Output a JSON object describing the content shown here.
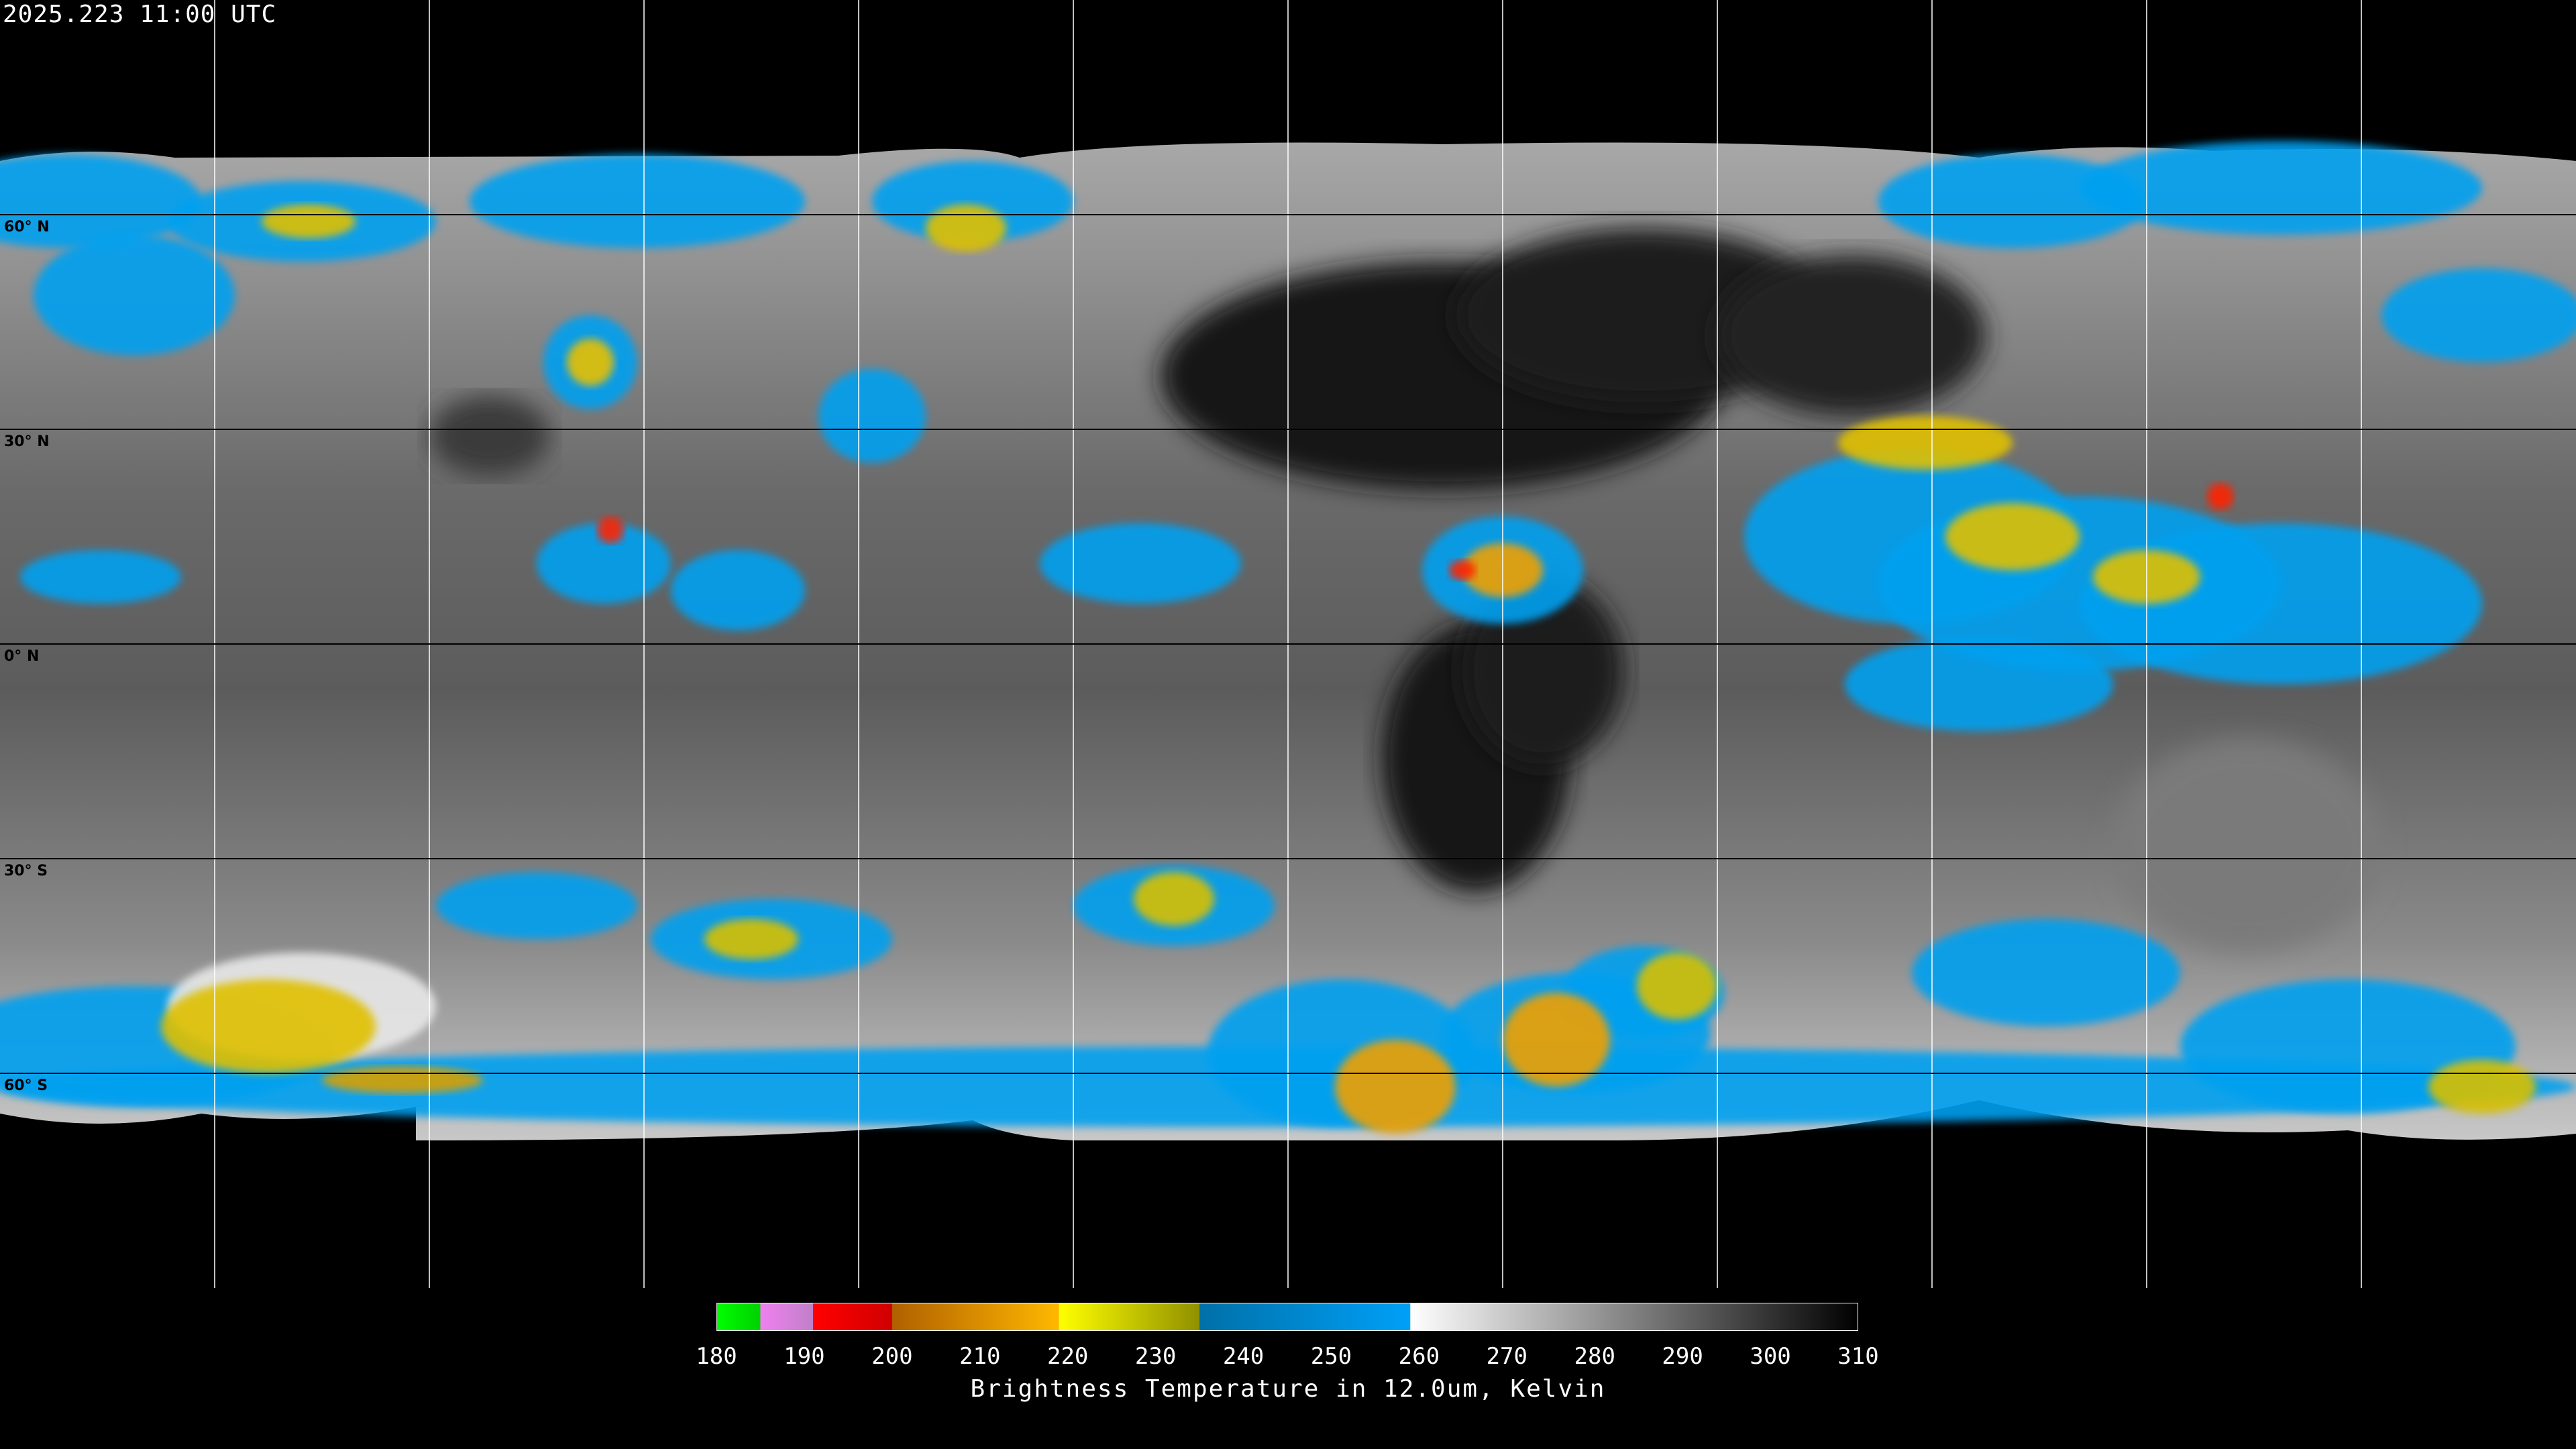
{
  "title": "2025.223 11:00 UTC",
  "grid": {
    "lat_labels": [
      "60° N",
      "30° N",
      "0° N",
      "30° S",
      "60° S"
    ],
    "lat_values": [
      60,
      30,
      0,
      -30,
      -60
    ],
    "lon_spacing_deg": 30
  },
  "colorbar": {
    "label": "Brightness Temperature in 12.0um, Kelvin",
    "range": [
      180,
      310
    ],
    "ticks": [
      "180",
      "190",
      "200",
      "210",
      "220",
      "230",
      "240",
      "250",
      "260",
      "270",
      "280",
      "290",
      "300",
      "310"
    ],
    "segments": [
      {
        "from": 180,
        "to": 185,
        "colors": [
          "#00ff00",
          "#00d000"
        ]
      },
      {
        "from": 185,
        "to": 191,
        "colors": [
          "#f080f0",
          "#c080c8"
        ]
      },
      {
        "from": 191,
        "to": 200,
        "colors": [
          "#ff0000",
          "#d00000"
        ]
      },
      {
        "from": 200,
        "to": 219,
        "colors": [
          "#b06000",
          "#ffb800"
        ]
      },
      {
        "from": 219,
        "to": 235,
        "colors": [
          "#ffff00",
          "#909000"
        ]
      },
      {
        "from": 235,
        "to": 259,
        "colors": [
          "#0070a8",
          "#00a0f8"
        ]
      },
      {
        "from": 259,
        "to": 310,
        "colors": [
          "#ffffff",
          "#000000"
        ]
      }
    ]
  }
}
